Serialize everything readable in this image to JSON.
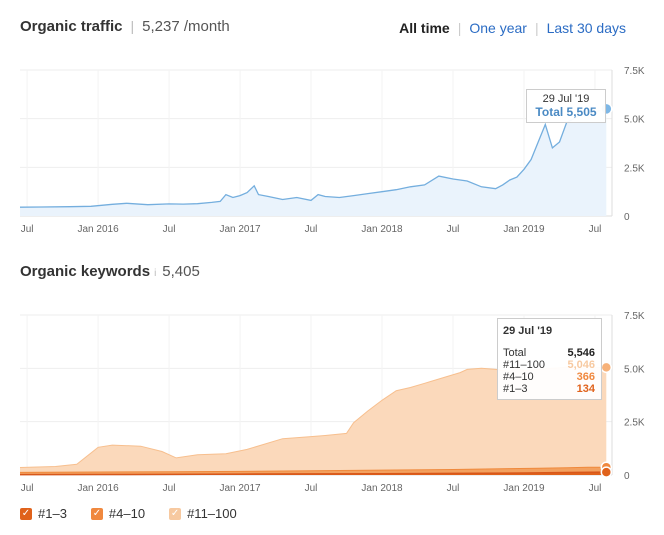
{
  "header1": {
    "title": "Organic traffic",
    "value": "5,237 /month"
  },
  "ranges": {
    "all_time": "All time",
    "one_year": "One year",
    "last_30_days": "Last 30 days"
  },
  "header2": {
    "title": "Organic keywords",
    "value": "5,405"
  },
  "tooltip1": {
    "date": "29 Jul '19",
    "label": "Total",
    "value": "5,505"
  },
  "tooltip2": {
    "date": "29 Jul '19",
    "rows": [
      {
        "label": "Total",
        "value": "5,546"
      },
      {
        "label": "#11–100",
        "value": "5,046"
      },
      {
        "label": "#4–10",
        "value": "366"
      },
      {
        "label": "#1–3",
        "value": "134"
      }
    ]
  },
  "legend": [
    {
      "label": "#1–3",
      "color": "#e0621b"
    },
    {
      "label": "#4–10",
      "color": "#f0883e"
    },
    {
      "label": "#11–100",
      "color": "#f7c9a0"
    }
  ],
  "colors": {
    "traffic_line": "#6aa8d8",
    "traffic_fill": "#e8f2fb",
    "link": "#2b6cc4"
  },
  "chart_data": [
    {
      "type": "area",
      "title": "Organic traffic",
      "x_ticks": [
        "Jul",
        "Jan 2016",
        "Jul",
        "Jan 2017",
        "Jul",
        "Jan 2018",
        "Jul",
        "Jan 2019",
        "Jul"
      ],
      "y_ticks": [
        "0",
        "2.5K",
        "5.0K",
        "7.5K"
      ],
      "ylim": [
        0,
        7500
      ],
      "xlim": [
        2015.45,
        2019.62
      ],
      "series": [
        {
          "x": [
            2015.45,
            2015.6,
            2015.8,
            2015.95,
            2016.1,
            2016.2,
            2016.35,
            2016.5,
            2016.6,
            2016.7,
            2016.8,
            2016.86,
            2016.9,
            2016.95,
            2017.0,
            2017.05,
            2017.1,
            2017.13,
            2017.2,
            2017.3,
            2017.4,
            2017.5,
            2017.55,
            2017.6,
            2017.7,
            2017.8,
            2017.9,
            2018.0,
            2018.1,
            2018.2,
            2018.3,
            2018.4,
            2018.5,
            2018.6,
            2018.7,
            2018.8,
            2018.85,
            2018.9,
            2018.95,
            2019.0,
            2019.05,
            2019.1,
            2019.15,
            2019.2,
            2019.25,
            2019.3,
            2019.35,
            2019.4,
            2019.45,
            2019.5,
            2019.58
          ],
          "y": [
            450,
            460,
            480,
            500,
            600,
            650,
            580,
            620,
            610,
            630,
            700,
            750,
            1100,
            950,
            1050,
            1200,
            1550,
            1100,
            1000,
            850,
            950,
            800,
            1100,
            1000,
            950,
            1050,
            1150,
            1250,
            1350,
            1500,
            1600,
            2050,
            1900,
            1800,
            1500,
            1400,
            1600,
            1850,
            2000,
            2400,
            2900,
            3800,
            4700,
            3500,
            3800,
            4800,
            5000,
            5200,
            5300,
            5350,
            5505
          ]
        }
      ]
    },
    {
      "type": "area",
      "title": "Organic keywords",
      "x_ticks": [
        "Jul",
        "Jan 2016",
        "Jul",
        "Jan 2017",
        "Jul",
        "Jan 2018",
        "Jul",
        "Jan 2019",
        "Jul"
      ],
      "y_ticks": [
        "0",
        "2.5K",
        "5.0K",
        "7.5K"
      ],
      "ylim": [
        0,
        7500
      ],
      "xlim": [
        2015.45,
        2019.62
      ],
      "series": [
        {
          "name": "#11–100",
          "x": [
            2015.45,
            2015.7,
            2015.85,
            2016.0,
            2016.1,
            2016.3,
            2016.45,
            2016.55,
            2016.7,
            2016.9,
            2017.05,
            2017.3,
            2017.5,
            2017.6,
            2017.75,
            2017.8,
            2017.9,
            2018.0,
            2018.1,
            2018.2,
            2018.3,
            2018.45,
            2018.55,
            2018.6,
            2018.7,
            2018.8,
            2018.85,
            2018.9,
            2018.95,
            2019.0,
            2019.1,
            2019.2,
            2019.3,
            2019.4,
            2019.5,
            2019.58
          ],
          "y": [
            350,
            400,
            500,
            1300,
            1400,
            1350,
            1100,
            800,
            950,
            1000,
            1200,
            1700,
            1800,
            1850,
            1950,
            2450,
            3000,
            3500,
            3950,
            4100,
            4300,
            4600,
            4800,
            4950,
            5000,
            4950,
            4900,
            4850,
            5000,
            4900,
            4950,
            5000,
            5050,
            5000,
            5040,
            5046
          ]
        },
        {
          "name": "#4–10",
          "x": [
            2015.45,
            2016.0,
            2016.5,
            2017.0,
            2017.5,
            2018.0,
            2018.5,
            2018.9,
            2019.1,
            2019.3,
            2019.45,
            2019.58
          ],
          "y": [
            120,
            140,
            150,
            170,
            200,
            230,
            260,
            300,
            320,
            340,
            360,
            366
          ]
        },
        {
          "name": "#1–3",
          "x": [
            2015.45,
            2016.0,
            2016.5,
            2017.0,
            2017.5,
            2018.0,
            2018.5,
            2019.0,
            2019.3,
            2019.58
          ],
          "y": [
            20,
            25,
            30,
            40,
            50,
            60,
            75,
            95,
            115,
            134
          ]
        }
      ]
    }
  ]
}
